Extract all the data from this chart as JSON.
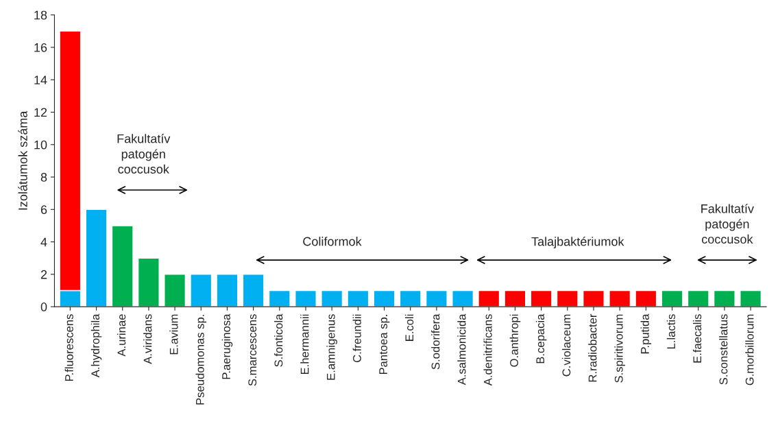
{
  "chart_data": {
    "type": "bar",
    "stacked": true,
    "ylabel": "Izolátumok száma",
    "categories": [
      "P.fluorescens",
      "A.hydrophila",
      "A.urinae",
      "A.viridans",
      "E.avium",
      "Pseudomonas sp.",
      "P.aeruginosa",
      "S.marcescens",
      "S.fonticola",
      "E.hermannii",
      "E.amnigenus",
      "C.freundii",
      "Pantoea sp.",
      "E.coli",
      "S.odorifera",
      "A.salmonicida",
      "A.denitrificans",
      "O.anthropi",
      "B.cepacia",
      "C.violaceum",
      "R.radiobacter",
      "S.spiritivorum",
      "P.putida",
      "L.lactis",
      "E.faecalis",
      "S.constellatus",
      "G.morbillorum"
    ],
    "series": [
      {
        "color": "#00b0f0",
        "values": [
          1,
          6,
          null,
          null,
          null,
          2,
          2,
          2,
          1,
          1,
          1,
          1,
          1,
          1,
          1,
          1,
          null,
          null,
          null,
          null,
          null,
          null,
          null,
          null,
          null,
          null,
          null
        ]
      },
      {
        "color": "#ff0000",
        "values": [
          16,
          null,
          null,
          null,
          null,
          null,
          null,
          null,
          null,
          null,
          null,
          null,
          null,
          null,
          null,
          null,
          1,
          1,
          1,
          1,
          1,
          1,
          1,
          null,
          null,
          null,
          null
        ]
      },
      {
        "color": "#00b050",
        "values": [
          null,
          null,
          5,
          3,
          2,
          null,
          null,
          null,
          null,
          null,
          null,
          null,
          null,
          null,
          null,
          null,
          null,
          null,
          null,
          null,
          null,
          null,
          null,
          1,
          1,
          1,
          1
        ]
      }
    ],
    "ylim": [
      0,
      18
    ],
    "yticks": [
      0,
      2,
      4,
      6,
      8,
      10,
      12,
      14,
      16,
      18
    ],
    "grid": false,
    "legend": false,
    "annotations": [
      "Fakultatív\npatogén\ncoccusok",
      "Coliformok",
      "Talajbaktériumok",
      "Fakultatív\npatogén\ncoccusok"
    ]
  }
}
